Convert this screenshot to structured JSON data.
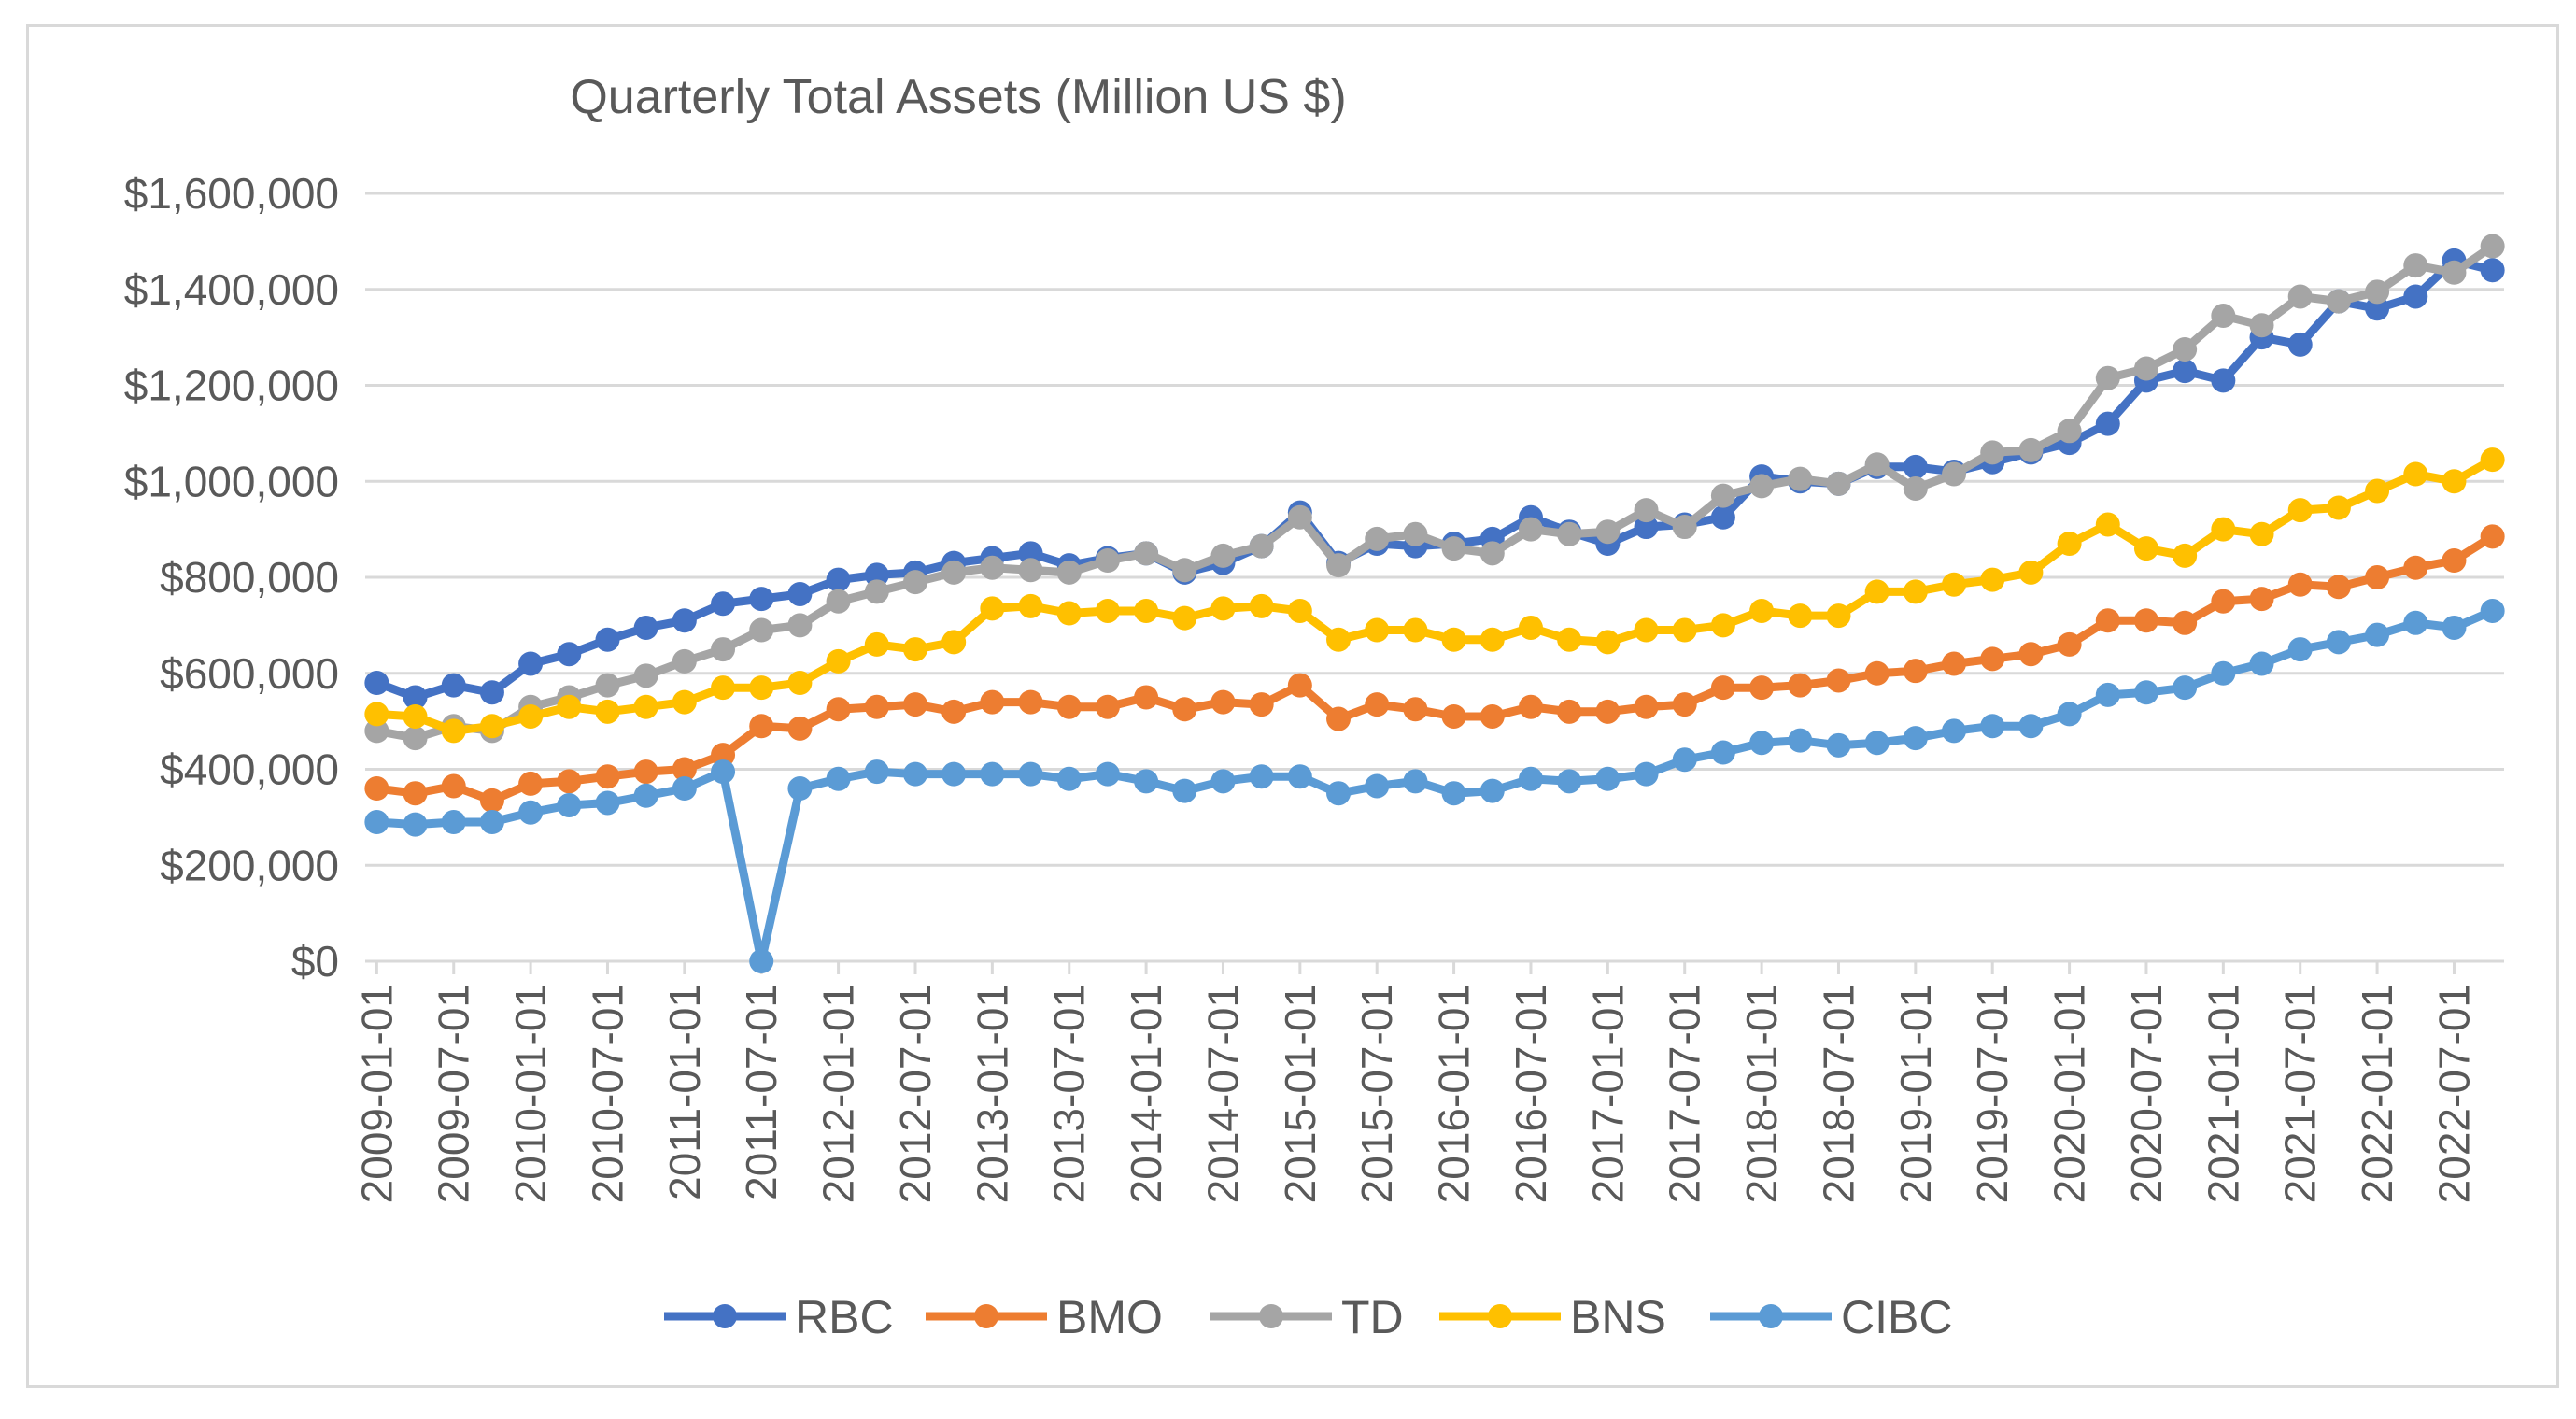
{
  "chart_data": {
    "type": "line",
    "title": "Quarterly Total Assets (Million US $)",
    "xlabel": "",
    "ylabel": "",
    "ylim": [
      0,
      1600000
    ],
    "yticks": [
      0,
      200000,
      400000,
      600000,
      800000,
      1000000,
      1200000,
      1400000,
      1600000
    ],
    "ytick_labels": [
      "$0",
      "$200,000",
      "$400,000",
      "$600,000",
      "$800,000",
      "$1,000,000",
      "$1,200,000",
      "$1,400,000",
      "$1,600,000"
    ],
    "grid": true,
    "legend_position": "bottom",
    "x_tick_labels": [
      "2009-01-01",
      "2009-07-01",
      "2010-01-01",
      "2010-07-01",
      "2011-01-01",
      "2011-07-01",
      "2012-01-01",
      "2012-07-01",
      "2013-01-01",
      "2013-07-01",
      "2014-01-01",
      "2014-07-01",
      "2015-01-01",
      "2015-07-01",
      "2016-01-01",
      "2016-07-01",
      "2017-01-01",
      "2017-07-01",
      "2018-01-01",
      "2018-07-01",
      "2019-01-01",
      "2019-07-01",
      "2020-01-01",
      "2020-07-01",
      "2021-01-01",
      "2021-07-01",
      "2022-01-01",
      "2022-07-01"
    ],
    "x": [
      "2009-01-01",
      "2009-04-01",
      "2009-07-01",
      "2009-10-01",
      "2010-01-01",
      "2010-04-01",
      "2010-07-01",
      "2010-10-01",
      "2011-01-01",
      "2011-04-01",
      "2011-07-01",
      "2011-10-01",
      "2012-01-01",
      "2012-04-01",
      "2012-07-01",
      "2012-10-01",
      "2013-01-01",
      "2013-04-01",
      "2013-07-01",
      "2013-10-01",
      "2014-01-01",
      "2014-04-01",
      "2014-07-01",
      "2014-10-01",
      "2015-01-01",
      "2015-04-01",
      "2015-07-01",
      "2015-10-01",
      "2016-01-01",
      "2016-04-01",
      "2016-07-01",
      "2016-10-01",
      "2017-01-01",
      "2017-04-01",
      "2017-07-01",
      "2017-10-01",
      "2018-01-01",
      "2018-04-01",
      "2018-07-01",
      "2018-10-01",
      "2019-01-01",
      "2019-04-01",
      "2019-07-01",
      "2019-10-01",
      "2020-01-01",
      "2020-04-01",
      "2020-07-01",
      "2020-10-01",
      "2021-01-01",
      "2021-04-01",
      "2021-07-01",
      "2021-10-01",
      "2022-01-01",
      "2022-04-01",
      "2022-07-01",
      "2022-10-01"
    ],
    "series": [
      {
        "name": "RBC",
        "color": "#4472c4",
        "values": [
          580000,
          550000,
          575000,
          560000,
          620000,
          640000,
          670000,
          695000,
          710000,
          745000,
          755000,
          765000,
          795000,
          805000,
          810000,
          830000,
          840000,
          850000,
          825000,
          840000,
          850000,
          810000,
          830000,
          865000,
          935000,
          830000,
          870000,
          865000,
          870000,
          880000,
          925000,
          895000,
          870000,
          905000,
          910000,
          925000,
          1010000,
          1000000,
          995000,
          1030000,
          1030000,
          1020000,
          1040000,
          1060000,
          1080000,
          1120000,
          1210000,
          1230000,
          1210000,
          1300000,
          1285000,
          1375000,
          1360000,
          1385000,
          1460000,
          1440000
        ]
      },
      {
        "name": "BMO",
        "color": "#ed7d31",
        "values": [
          360000,
          350000,
          365000,
          335000,
          370000,
          375000,
          385000,
          395000,
          400000,
          430000,
          490000,
          485000,
          525000,
          530000,
          535000,
          520000,
          540000,
          540000,
          530000,
          530000,
          550000,
          525000,
          540000,
          535000,
          575000,
          505000,
          535000,
          525000,
          510000,
          510000,
          530000,
          520000,
          520000,
          530000,
          535000,
          570000,
          570000,
          575000,
          585000,
          600000,
          605000,
          620000,
          630000,
          640000,
          660000,
          710000,
          710000,
          705000,
          750000,
          755000,
          785000,
          780000,
          800000,
          820000,
          835000,
          885000
        ]
      },
      {
        "name": "TD",
        "color": "#a5a5a5",
        "values": [
          480000,
          465000,
          490000,
          480000,
          530000,
          550000,
          575000,
          595000,
          625000,
          650000,
          690000,
          700000,
          750000,
          770000,
          790000,
          810000,
          820000,
          815000,
          810000,
          835000,
          850000,
          815000,
          845000,
          865000,
          925000,
          825000,
          880000,
          890000,
          860000,
          850000,
          900000,
          890000,
          895000,
          940000,
          905000,
          970000,
          990000,
          1005000,
          995000,
          1035000,
          985000,
          1015000,
          1060000,
          1065000,
          1105000,
          1215000,
          1235000,
          1275000,
          1345000,
          1325000,
          1385000,
          1375000,
          1395000,
          1450000,
          1435000,
          1490000
        ]
      },
      {
        "name": "BNS",
        "color": "#ffc000",
        "values": [
          515000,
          510000,
          480000,
          490000,
          510000,
          530000,
          520000,
          530000,
          540000,
          570000,
          570000,
          580000,
          625000,
          660000,
          650000,
          665000,
          735000,
          740000,
          725000,
          730000,
          730000,
          715000,
          735000,
          740000,
          730000,
          670000,
          690000,
          690000,
          670000,
          670000,
          695000,
          670000,
          665000,
          690000,
          690000,
          700000,
          730000,
          720000,
          720000,
          770000,
          770000,
          785000,
          795000,
          810000,
          870000,
          910000,
          860000,
          845000,
          900000,
          890000,
          940000,
          945000,
          980000,
          1015000,
          1000000,
          1045000
        ]
      },
      {
        "name": "CIBC",
        "color": "#5b9bd5",
        "values": [
          290000,
          285000,
          290000,
          290000,
          310000,
          325000,
          330000,
          345000,
          360000,
          395000,
          0,
          360000,
          380000,
          395000,
          390000,
          390000,
          390000,
          390000,
          380000,
          390000,
          375000,
          355000,
          375000,
          385000,
          385000,
          350000,
          365000,
          375000,
          350000,
          355000,
          380000,
          375000,
          380000,
          390000,
          420000,
          435000,
          455000,
          460000,
          450000,
          455000,
          465000,
          480000,
          490000,
          490000,
          515000,
          555000,
          560000,
          570000,
          600000,
          620000,
          650000,
          665000,
          680000,
          705000,
          695000,
          730000
        ]
      }
    ]
  }
}
